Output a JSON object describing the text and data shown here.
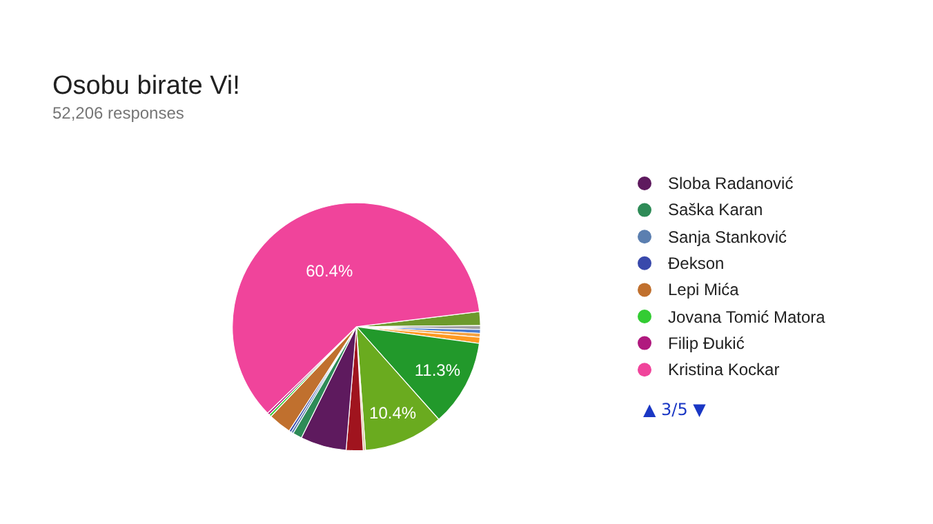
{
  "chart_data": {
    "type": "pie",
    "title": "Osobu birate Vi!",
    "subtitle": "52,206 responses",
    "categories": [
      null,
      null,
      null,
      null,
      null,
      null,
      null,
      null,
      null,
      "Sloba Radanović",
      "Saška Karan",
      "Sanja Stanković",
      "Đekson",
      "Lepi Mića",
      "Jovana Tomić Matora",
      "Filip Đukić",
      "Kristina Kockar"
    ],
    "values": [
      1.8,
      0.5,
      0.5,
      0.5,
      0.8,
      11.3,
      10.4,
      0.3,
      2.2,
      6.0,
      1.2,
      0.3,
      0.3,
      3.0,
      0.3,
      0.3,
      60.4
    ],
    "value_labels": [
      null,
      null,
      null,
      null,
      null,
      "11.3%",
      "10.4%",
      null,
      null,
      null,
      null,
      null,
      null,
      null,
      null,
      null,
      "60.4%"
    ],
    "colors": [
      "#6d9a2c",
      "#a0a0a0",
      "#4a7bd0",
      "#f4a142",
      "#ff9922",
      "#22992b",
      "#6aab1f",
      "#d8c59a",
      "#a0141e",
      "#5e1a5e",
      "#2e8b57",
      "#5b7fb0",
      "#3949ab",
      "#c0702e",
      "#33cc33",
      "#b0197e",
      "#f0449b"
    ],
    "legend": "right",
    "annotations": [
      "▲ 3/5 ▼"
    ]
  }
}
